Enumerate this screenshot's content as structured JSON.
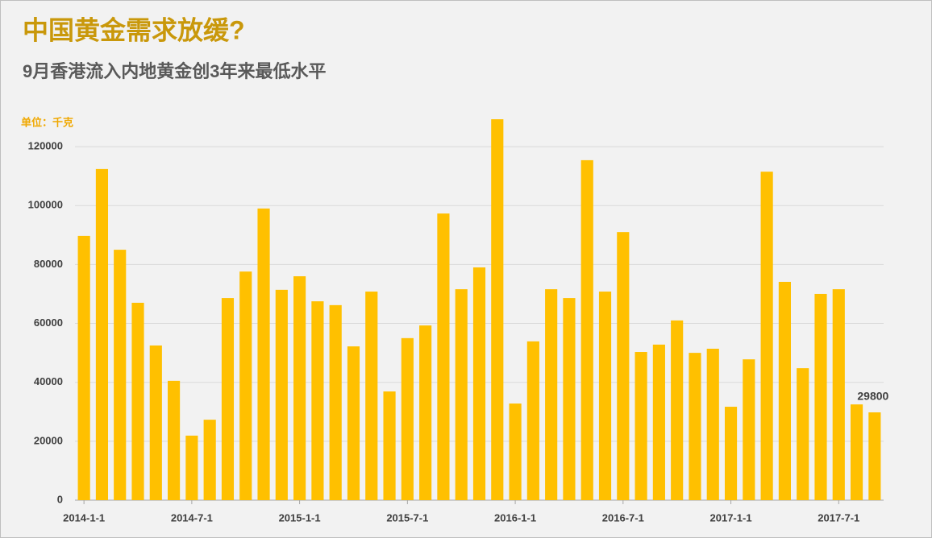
{
  "chart_data": {
    "type": "bar",
    "title": "中国黄金需求放缓?",
    "subtitle": "9月香港流入内地黄金创3年来最低水平",
    "unit_label": "单位：千克",
    "categories": [
      "2014-1-1",
      null,
      null,
      null,
      null,
      null,
      "2014-7-1",
      null,
      null,
      null,
      null,
      null,
      "2015-1-1",
      null,
      null,
      null,
      null,
      null,
      "2015-7-1",
      null,
      null,
      null,
      null,
      null,
      "2016-1-1",
      null,
      null,
      null,
      null,
      null,
      "2016-7-1",
      null,
      null,
      null,
      null,
      null,
      "2017-1-1",
      null,
      null,
      null,
      null,
      null,
      "2017-7-1",
      null,
      null
    ],
    "values": [
      89700,
      112400,
      85000,
      67000,
      52500,
      40500,
      21900,
      27300,
      68600,
      77600,
      99000,
      71400,
      76000,
      67500,
      66200,
      52200,
      70800,
      36900,
      55000,
      59300,
      97300,
      71600,
      79000,
      129300,
      32800,
      53900,
      71600,
      68600,
      115400,
      70800,
      91000,
      50300,
      52800,
      61000,
      50000,
      51400,
      31700,
      47800,
      111500,
      74100,
      44800,
      70000,
      71600,
      32500,
      29800
    ],
    "color": "#ffc000",
    "data_labels": "last",
    "ylim": [
      0,
      130000
    ],
    "yticks": [
      0,
      20000,
      40000,
      60000,
      80000,
      100000,
      120000
    ],
    "grid": true
  }
}
